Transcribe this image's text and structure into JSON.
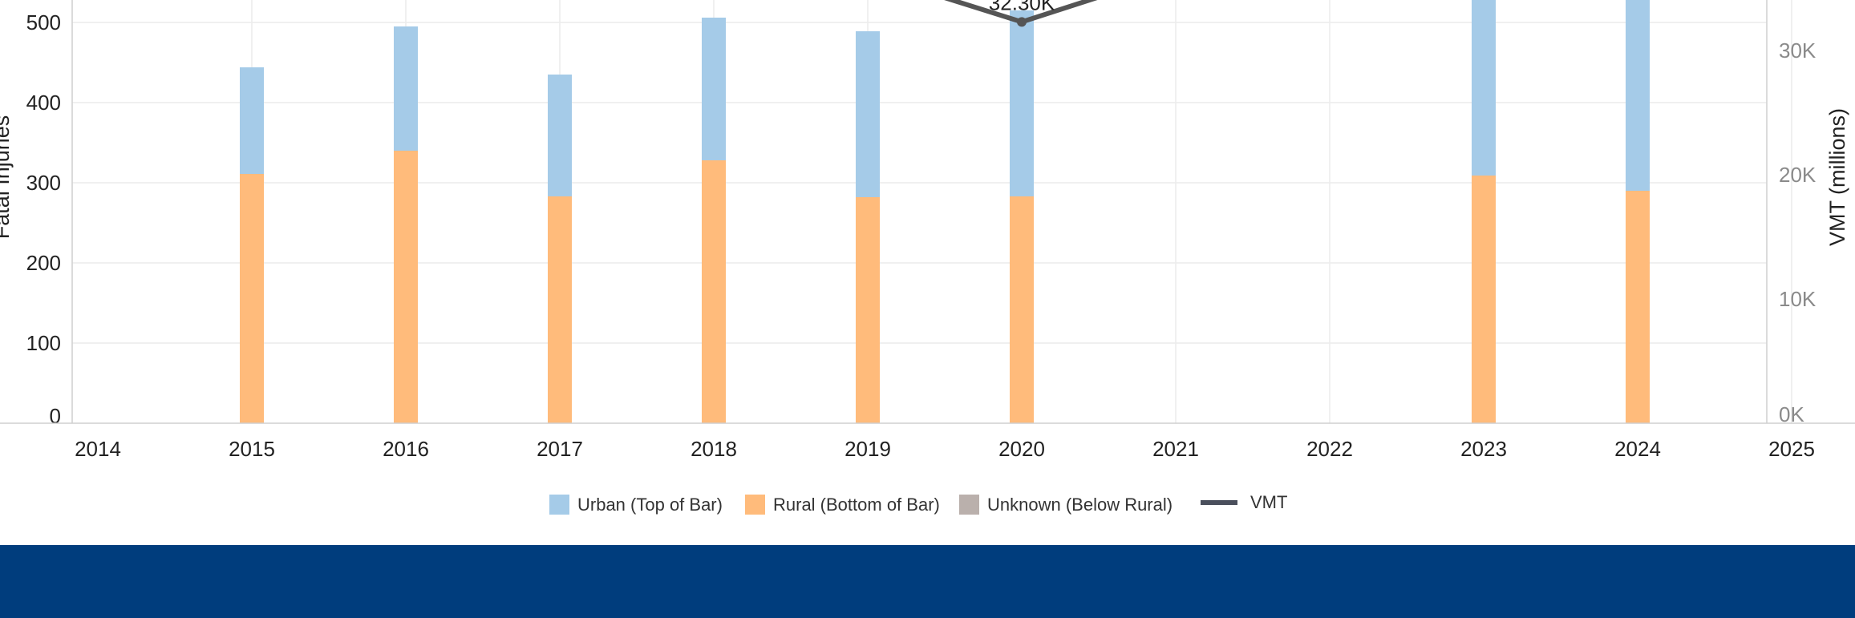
{
  "chart_data": {
    "type": "bar",
    "stacked": true,
    "x_ticks": [
      "2014",
      "2015",
      "2016",
      "2017",
      "2018",
      "2019",
      "2020",
      "2021",
      "2022",
      "2023",
      "2024",
      "2025"
    ],
    "ylabel": "Fatal Injuries",
    "y2label": "VMT (millions)",
    "ylim": [
      0,
      530
    ],
    "y2lim": [
      0,
      35500
    ],
    "y_ticks": [
      0,
      100,
      200,
      300,
      400,
      500
    ],
    "y2_ticks": [
      {
        "value": 0,
        "label": "0K"
      },
      {
        "value": 10000,
        "label": "10K"
      },
      {
        "value": 20000,
        "label": "20K"
      },
      {
        "value": 30000,
        "label": "30K"
      }
    ],
    "grid": true,
    "legend_position": "bottom",
    "categories": [
      "2015",
      "2016",
      "2017",
      "2018",
      "2019",
      "2020",
      "2023",
      "2024"
    ],
    "series": [
      {
        "name": "Rural (Bottom of Bar)",
        "color": "#ffbb7b",
        "values": [
          311,
          340,
          283,
          328,
          282,
          283,
          309,
          290
        ]
      },
      {
        "name": "Urban  (Top of Bar)",
        "color": "#a5cbe8",
        "values": [
          133,
          155,
          152,
          178,
          207,
          232,
          260,
          260
        ]
      },
      {
        "name": "Unknown (Below Rural)",
        "color": "#bab0ac",
        "values": [
          0,
          0,
          0,
          0,
          0,
          0,
          0,
          0
        ]
      }
    ],
    "line_series": {
      "name": "VMT",
      "color": "#555555",
      "points": [
        {
          "x": "2019",
          "y": 36200
        },
        {
          "x": "2020",
          "y": 32300
        },
        {
          "x": "2021",
          "y": 36300
        }
      ],
      "annotation": {
        "x": "2020",
        "label": "32.30K"
      }
    },
    "legend": [
      {
        "label": "Urban  (Top of Bar)",
        "color": "#a5cbe8",
        "kind": "square"
      },
      {
        "label": "Rural (Bottom of Bar)",
        "color": "#ffbb7b",
        "kind": "square"
      },
      {
        "label": "Unknown (Below Rural)",
        "color": "#bab0ac",
        "kind": "square"
      },
      {
        "label": "VMT",
        "color": "#4a4f5c",
        "kind": "line"
      }
    ]
  },
  "footer": {
    "color": "#003d7d"
  }
}
